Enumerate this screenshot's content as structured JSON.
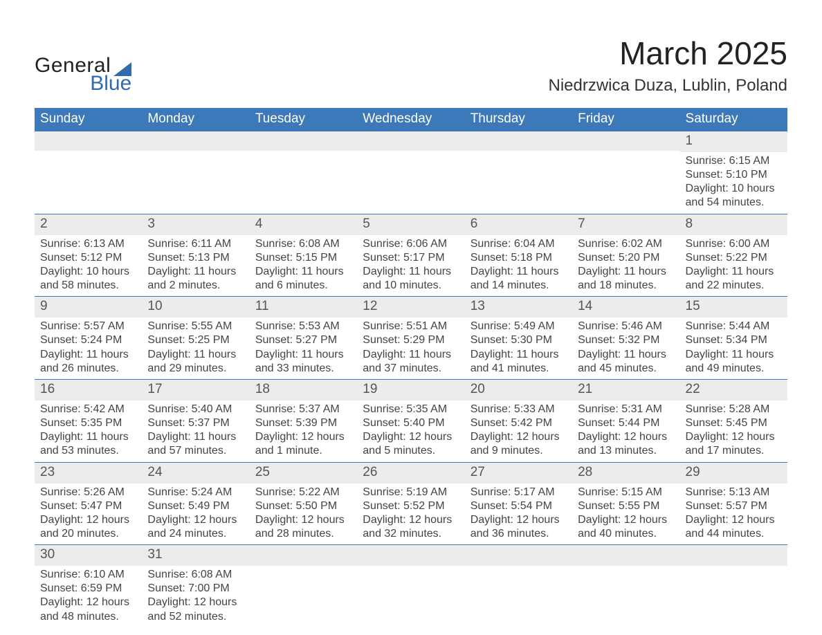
{
  "brand": {
    "line1": "General",
    "line2": "Blue"
  },
  "title": "March 2025",
  "location": "Niedrzwica Duza, Lublin, Poland",
  "colors": {
    "header_bg": "#3d78b8",
    "header_text": "#ffffff",
    "daynum_bg": "#ececec",
    "row_divider": "#3d78b8",
    "text": "#444444",
    "brand_blue": "#2e6caf",
    "page_bg": "#ffffff"
  },
  "typography": {
    "title_fontsize": 46,
    "location_fontsize": 24,
    "dayhead_fontsize": 19,
    "daynum_fontsize": 19,
    "body_fontsize": 16,
    "font_family": "Arial"
  },
  "dayHeaders": [
    "Sunday",
    "Monday",
    "Tuesday",
    "Wednesday",
    "Thursday",
    "Friday",
    "Saturday"
  ],
  "weeks": [
    [
      {
        "empty": true
      },
      {
        "empty": true
      },
      {
        "empty": true
      },
      {
        "empty": true
      },
      {
        "empty": true
      },
      {
        "empty": true
      },
      {
        "num": "1",
        "sunrise": "6:15 AM",
        "sunset": "5:10 PM",
        "daylight": "10 hours and 54 minutes."
      }
    ],
    [
      {
        "num": "2",
        "sunrise": "6:13 AM",
        "sunset": "5:12 PM",
        "daylight": "10 hours and 58 minutes."
      },
      {
        "num": "3",
        "sunrise": "6:11 AM",
        "sunset": "5:13 PM",
        "daylight": "11 hours and 2 minutes."
      },
      {
        "num": "4",
        "sunrise": "6:08 AM",
        "sunset": "5:15 PM",
        "daylight": "11 hours and 6 minutes."
      },
      {
        "num": "5",
        "sunrise": "6:06 AM",
        "sunset": "5:17 PM",
        "daylight": "11 hours and 10 minutes."
      },
      {
        "num": "6",
        "sunrise": "6:04 AM",
        "sunset": "5:18 PM",
        "daylight": "11 hours and 14 minutes."
      },
      {
        "num": "7",
        "sunrise": "6:02 AM",
        "sunset": "5:20 PM",
        "daylight": "11 hours and 18 minutes."
      },
      {
        "num": "8",
        "sunrise": "6:00 AM",
        "sunset": "5:22 PM",
        "daylight": "11 hours and 22 minutes."
      }
    ],
    [
      {
        "num": "9",
        "sunrise": "5:57 AM",
        "sunset": "5:24 PM",
        "daylight": "11 hours and 26 minutes."
      },
      {
        "num": "10",
        "sunrise": "5:55 AM",
        "sunset": "5:25 PM",
        "daylight": "11 hours and 29 minutes."
      },
      {
        "num": "11",
        "sunrise": "5:53 AM",
        "sunset": "5:27 PM",
        "daylight": "11 hours and 33 minutes."
      },
      {
        "num": "12",
        "sunrise": "5:51 AM",
        "sunset": "5:29 PM",
        "daylight": "11 hours and 37 minutes."
      },
      {
        "num": "13",
        "sunrise": "5:49 AM",
        "sunset": "5:30 PM",
        "daylight": "11 hours and 41 minutes."
      },
      {
        "num": "14",
        "sunrise": "5:46 AM",
        "sunset": "5:32 PM",
        "daylight": "11 hours and 45 minutes."
      },
      {
        "num": "15",
        "sunrise": "5:44 AM",
        "sunset": "5:34 PM",
        "daylight": "11 hours and 49 minutes."
      }
    ],
    [
      {
        "num": "16",
        "sunrise": "5:42 AM",
        "sunset": "5:35 PM",
        "daylight": "11 hours and 53 minutes."
      },
      {
        "num": "17",
        "sunrise": "5:40 AM",
        "sunset": "5:37 PM",
        "daylight": "11 hours and 57 minutes."
      },
      {
        "num": "18",
        "sunrise": "5:37 AM",
        "sunset": "5:39 PM",
        "daylight": "12 hours and 1 minute."
      },
      {
        "num": "19",
        "sunrise": "5:35 AM",
        "sunset": "5:40 PM",
        "daylight": "12 hours and 5 minutes."
      },
      {
        "num": "20",
        "sunrise": "5:33 AM",
        "sunset": "5:42 PM",
        "daylight": "12 hours and 9 minutes."
      },
      {
        "num": "21",
        "sunrise": "5:31 AM",
        "sunset": "5:44 PM",
        "daylight": "12 hours and 13 minutes."
      },
      {
        "num": "22",
        "sunrise": "5:28 AM",
        "sunset": "5:45 PM",
        "daylight": "12 hours and 17 minutes."
      }
    ],
    [
      {
        "num": "23",
        "sunrise": "5:26 AM",
        "sunset": "5:47 PM",
        "daylight": "12 hours and 20 minutes."
      },
      {
        "num": "24",
        "sunrise": "5:24 AM",
        "sunset": "5:49 PM",
        "daylight": "12 hours and 24 minutes."
      },
      {
        "num": "25",
        "sunrise": "5:22 AM",
        "sunset": "5:50 PM",
        "daylight": "12 hours and 28 minutes."
      },
      {
        "num": "26",
        "sunrise": "5:19 AM",
        "sunset": "5:52 PM",
        "daylight": "12 hours and 32 minutes."
      },
      {
        "num": "27",
        "sunrise": "5:17 AM",
        "sunset": "5:54 PM",
        "daylight": "12 hours and 36 minutes."
      },
      {
        "num": "28",
        "sunrise": "5:15 AM",
        "sunset": "5:55 PM",
        "daylight": "12 hours and 40 minutes."
      },
      {
        "num": "29",
        "sunrise": "5:13 AM",
        "sunset": "5:57 PM",
        "daylight": "12 hours and 44 minutes."
      }
    ],
    [
      {
        "num": "30",
        "sunrise": "6:10 AM",
        "sunset": "6:59 PM",
        "daylight": "12 hours and 48 minutes."
      },
      {
        "num": "31",
        "sunrise": "6:08 AM",
        "sunset": "7:00 PM",
        "daylight": "12 hours and 52 minutes."
      },
      {
        "empty_end": true
      },
      {
        "empty_end": true
      },
      {
        "empty_end": true
      },
      {
        "empty_end": true
      },
      {
        "empty_end": true
      }
    ]
  ],
  "labels": {
    "sunrise": "Sunrise:",
    "sunset": "Sunset:",
    "daylight": "Daylight:"
  }
}
